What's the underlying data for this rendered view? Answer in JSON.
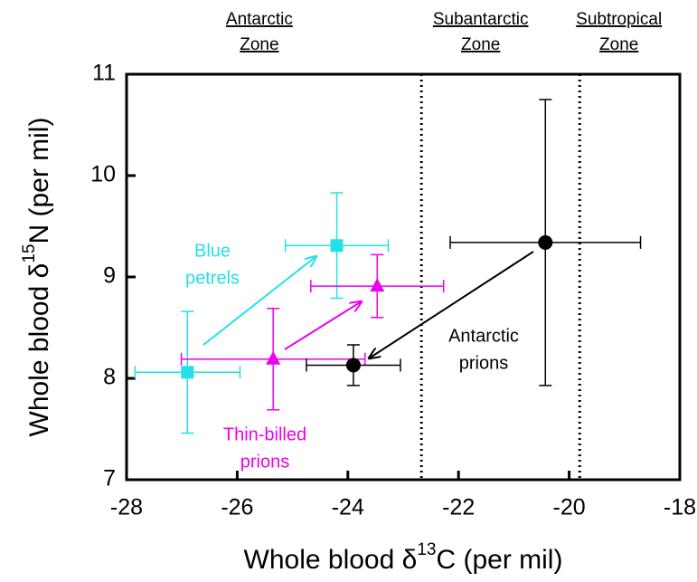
{
  "chart_data": {
    "type": "scatter",
    "xlabel": {
      "text": "Whole blood δ",
      "sup": "13",
      "rest": "C (per mil)"
    },
    "ylabel": {
      "text": "Whole blood δ",
      "sup": "15",
      "rest": "N (per mil)"
    },
    "xlim": [
      -28,
      -18
    ],
    "xticks": [
      -28,
      -26,
      -24,
      -22,
      -20,
      -18
    ],
    "ylim": [
      7,
      11
    ],
    "yticks": [
      7,
      8,
      9,
      10,
      11
    ],
    "vlines": [
      -22.67,
      -19.81
    ],
    "zones": [
      {
        "lines": [
          "Antarctic",
          "Zone"
        ],
        "x": -25.6
      },
      {
        "lines": [
          "Subantarctic",
          "Zone"
        ],
        "x": -21.6
      },
      {
        "lines": [
          "Subtropical",
          "Zone"
        ],
        "x": -19.1
      }
    ],
    "series": [
      {
        "label": [
          "Blue",
          "petrels"
        ],
        "color": "#22e0e6",
        "marker": "square",
        "x": [
          -26.9,
          -24.2
        ],
        "values": [
          8.06,
          9.31
        ],
        "xerr": [
          0.95,
          0.93
        ],
        "yerr": [
          0.6,
          0.52
        ]
      },
      {
        "label": [
          "Thin-billed",
          "prions"
        ],
        "color": "#ee00ee",
        "marker": "triangle",
        "x": [
          -25.35,
          -23.47
        ],
        "values": [
          8.19,
          8.91
        ],
        "xerr": [
          1.66,
          1.2
        ],
        "yerr": [
          0.5,
          0.31
        ]
      },
      {
        "label": [
          "Antarctic",
          "prions"
        ],
        "color": "#000000",
        "marker": "circle",
        "x": [
          -23.9,
          -20.43
        ],
        "values": [
          8.13,
          9.34
        ],
        "xerr": [
          0.85,
          1.72
        ],
        "yerr": [
          0.2,
          1.41
        ]
      }
    ]
  }
}
